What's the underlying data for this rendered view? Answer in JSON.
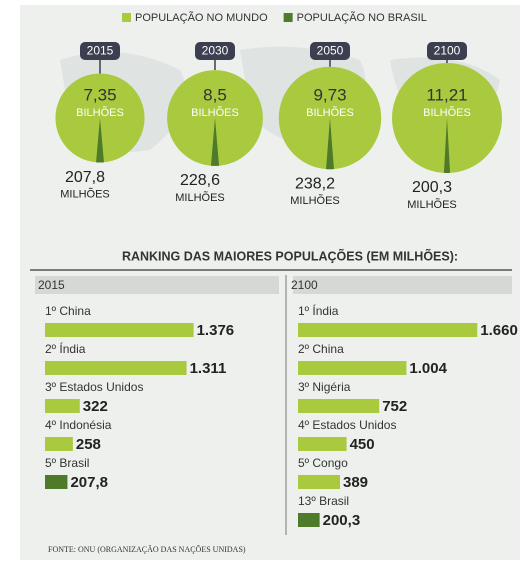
{
  "chart_data": [
    {
      "type": "bubble",
      "categories": [
        "2015",
        "2030",
        "2050",
        "2100"
      ],
      "series": [
        {
          "name": "POPULAÇÃO NO MUNDO",
          "color": "#a9c93f",
          "values": [
            7.35,
            8.5,
            9.73,
            11.21
          ],
          "value_labels": [
            "7,35",
            "8,5",
            "9,73",
            "11,21"
          ],
          "unit": "BILHÕES"
        },
        {
          "name": "POPULAÇÃO NO BRASIL",
          "color": "#4e7a2a",
          "values": [
            207.8,
            228.6,
            238.2,
            200.3
          ],
          "value_labels": [
            "207,8",
            "228,6",
            "238,2",
            "200,3"
          ],
          "unit": "MILHÕES"
        }
      ]
    },
    {
      "type": "bar",
      "subtitle": "2015",
      "categories": [
        "1º China",
        "2º Índia",
        "3º Estados Unidos",
        "4º Indonésia",
        "5º Brasil"
      ],
      "values": [
        1376,
        1311,
        322,
        258,
        207.8
      ],
      "value_labels": [
        "1.376",
        "1.311",
        "322",
        "258",
        "207,8"
      ],
      "colors": [
        "#a9c93f",
        "#a9c93f",
        "#a9c93f",
        "#a9c93f",
        "#4e7a2a"
      ]
    },
    {
      "type": "bar",
      "subtitle": "2100",
      "categories": [
        "1º Índia",
        "2º China",
        "3º Nigéria",
        "4º Estados Unidos",
        "5º Congo",
        "13º Brasil"
      ],
      "values": [
        1660,
        1004,
        752,
        450,
        389,
        200.3
      ],
      "value_labels": [
        "1.660",
        "1.004",
        "752",
        "450",
        "389",
        "200,3"
      ],
      "colors": [
        "#a9c93f",
        "#a9c93f",
        "#a9c93f",
        "#a9c93f",
        "#a9c93f",
        "#4e7a2a"
      ]
    }
  ],
  "ranking_title": "RANKING DAS MAIORES POPULAÇÕES (EM MILHÕES):",
  "source": "FONTE: ONU (ORGANIZAÇÃO DAS NAÇÕES UNIDAS)"
}
